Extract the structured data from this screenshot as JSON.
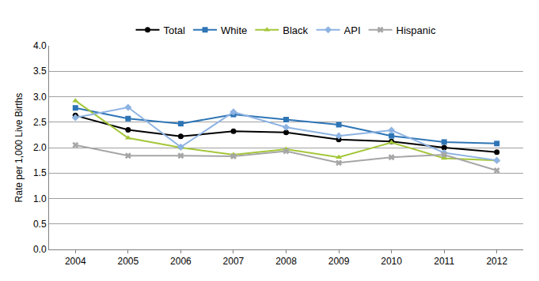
{
  "chart_data": {
    "type": "line",
    "y_label": "Rate per 1,000 Live Births",
    "categories": [
      "2004",
      "2005",
      "2006",
      "2007",
      "2008",
      "2009",
      "2010",
      "2011",
      "2012"
    ],
    "series": [
      {
        "name": "Total",
        "color": "#000000",
        "marker": "circle",
        "values": [
          2.63,
          2.35,
          2.22,
          2.32,
          2.3,
          2.16,
          2.12,
          2.0,
          1.91
        ]
      },
      {
        "name": "White",
        "color": "#2e75b6",
        "marker": "square",
        "values": [
          2.78,
          2.57,
          2.47,
          2.65,
          2.55,
          2.45,
          2.23,
          2.11,
          2.08
        ]
      },
      {
        "name": "Black",
        "color": "#a4c639",
        "marker": "triangle-up",
        "values": [
          2.92,
          2.19,
          2.0,
          1.86,
          1.97,
          1.81,
          2.1,
          1.79,
          1.75
        ]
      },
      {
        "name": "API",
        "color": "#8db3e2",
        "marker": "diamond",
        "values": [
          2.59,
          2.79,
          2.01,
          2.7,
          2.4,
          2.23,
          2.34,
          1.9,
          1.75
        ]
      },
      {
        "name": "Hispanic",
        "color": "#a6a6a6",
        "marker": "x",
        "values": [
          2.05,
          1.84,
          1.84,
          1.83,
          1.93,
          1.7,
          1.81,
          1.86,
          1.55
        ]
      }
    ],
    "ylim": [
      0,
      4
    ],
    "yticks": [
      {
        "value": 0,
        "label": "0.0"
      },
      0.5,
      {
        "value": 1,
        "label": "1.0"
      },
      1.5,
      {
        "value": 2,
        "label": "2.0"
      },
      2.5,
      {
        "value": 3,
        "label": "3.0"
      },
      3.5,
      {
        "value": 4,
        "label": "4.0"
      }
    ],
    "grid": true,
    "legend": "top"
  }
}
